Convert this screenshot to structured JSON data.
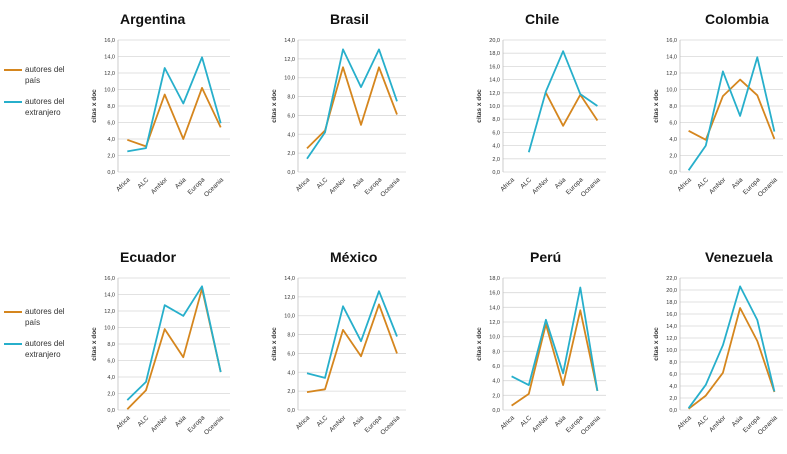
{
  "legend": [
    {
      "label": "autores del país",
      "color": "#D5861E"
    },
    {
      "label": "autores del extranjero",
      "color": "#27AFCB"
    }
  ],
  "chart_data": [
    {
      "type": "line",
      "title": "Argentina",
      "ylabel": "citas x doc",
      "categories": [
        "Africa",
        "ALC",
        "AmNor",
        "Asia",
        "Europa",
        "Oceania"
      ],
      "yticks": [
        "0,0",
        "2,0",
        "4,0",
        "6,0",
        "8,0",
        "10,0",
        "12,0",
        "14,0",
        "16,0"
      ],
      "ylim": [
        0,
        16
      ],
      "series": [
        {
          "name": "autores del país",
          "color": "#D5861E",
          "values": [
            3.9,
            3.1,
            9.4,
            4.0,
            10.2,
            5.4
          ]
        },
        {
          "name": "autores del extranjero",
          "color": "#27AFCB",
          "values": [
            2.5,
            2.9,
            12.6,
            8.3,
            13.9,
            5.9
          ]
        }
      ]
    },
    {
      "type": "line",
      "title": "Brasil",
      "ylabel": "citas x doc",
      "categories": [
        "Africa",
        "ALC",
        "AmNor",
        "Asia",
        "Europa",
        "Oceania"
      ],
      "yticks": [
        "0,0",
        "2,0",
        "4,0",
        "6,0",
        "8,0",
        "10,0",
        "12,0",
        "14,0"
      ],
      "ylim": [
        0,
        14
      ],
      "series": [
        {
          "name": "autores del país",
          "color": "#D5861E",
          "values": [
            2.5,
            4.4,
            11.1,
            5.0,
            11.1,
            6.1
          ]
        },
        {
          "name": "autores del extranjero",
          "color": "#27AFCB",
          "values": [
            1.4,
            4.2,
            13.0,
            9.0,
            13.0,
            7.5
          ]
        }
      ]
    },
    {
      "type": "line",
      "title": "Chile",
      "ylabel": "citas x doc",
      "categories": [
        "Africa",
        "ALC",
        "AmNor",
        "Asia",
        "Europa",
        "Oceania"
      ],
      "yticks": [
        "0,0",
        "2,0",
        "4,0",
        "6,0",
        "8,0",
        "10,0",
        "12,0",
        "14,0",
        "16,0",
        "18,0",
        "20,0"
      ],
      "ylim": [
        0,
        20
      ],
      "series": [
        {
          "name": "autores del país",
          "color": "#D5861E",
          "values": [
            null,
            null,
            12.0,
            7.0,
            11.7,
            7.8
          ]
        },
        {
          "name": "autores del extranjero",
          "color": "#27AFCB",
          "values": [
            null,
            3.0,
            12.2,
            18.3,
            11.8,
            10.0
          ]
        }
      ]
    },
    {
      "type": "line",
      "title": "Colombia",
      "ylabel": "citas x doc",
      "categories": [
        "Africa",
        "ALC",
        "AmNor",
        "Asia",
        "Europa",
        "Oceania"
      ],
      "yticks": [
        "0,0",
        "2,0",
        "4,0",
        "6,0",
        "8,0",
        "10,0",
        "12,0",
        "14,0",
        "16,0"
      ],
      "ylim": [
        0,
        16
      ],
      "series": [
        {
          "name": "autores del país",
          "color": "#D5861E",
          "values": [
            5.0,
            3.9,
            9.2,
            11.2,
            9.3,
            4.0
          ]
        },
        {
          "name": "autores del extranjero",
          "color": "#27AFCB",
          "values": [
            0.2,
            3.2,
            12.2,
            6.8,
            13.9,
            4.9
          ]
        }
      ]
    },
    {
      "type": "line",
      "title": "Ecuador",
      "ylabel": "citas x doc",
      "categories": [
        "Africa",
        "ALC",
        "AmNor",
        "Asia",
        "Europa",
        "Oceania"
      ],
      "yticks": [
        "0,0",
        "2,0",
        "4,0",
        "6,0",
        "8,0",
        "10,0",
        "12,0",
        "14,0",
        "16,0"
      ],
      "ylim": [
        0,
        16
      ],
      "series": [
        {
          "name": "autores del país",
          "color": "#D5861E",
          "values": [
            0.1,
            2.4,
            9.8,
            6.4,
            14.7,
            4.6
          ]
        },
        {
          "name": "autores del extranjero",
          "color": "#27AFCB",
          "values": [
            1.2,
            3.4,
            12.7,
            11.4,
            15.0,
            4.6
          ]
        }
      ]
    },
    {
      "type": "line",
      "title": "México",
      "ylabel": "citas x doc",
      "categories": [
        "Africa",
        "ALC",
        "AmNor",
        "Asia",
        "Europa",
        "Oceania"
      ],
      "yticks": [
        "0,0",
        "2,0",
        "4,0",
        "6,0",
        "8,0",
        "10,0",
        "12,0",
        "14,0"
      ],
      "ylim": [
        0,
        14
      ],
      "series": [
        {
          "name": "autores del país",
          "color": "#D5861E",
          "values": [
            1.9,
            2.2,
            8.5,
            5.7,
            11.2,
            6.0
          ]
        },
        {
          "name": "autores del extranjero",
          "color": "#27AFCB",
          "values": [
            3.9,
            3.4,
            11.0,
            7.3,
            12.6,
            7.8
          ]
        }
      ]
    },
    {
      "type": "line",
      "title": "Perú",
      "ylabel": "citas x doc",
      "categories": [
        "Africa",
        "ALC",
        "AmNor",
        "Asia",
        "Europa",
        "Oceania"
      ],
      "yticks": [
        "0,0",
        "2,0",
        "4,0",
        "6,0",
        "8,0",
        "10,0",
        "12,0",
        "14,0",
        "16,0",
        "18,0"
      ],
      "ylim": [
        0,
        18
      ],
      "series": [
        {
          "name": "autores del país",
          "color": "#D5861E",
          "values": [
            0.6,
            2.2,
            11.7,
            3.4,
            13.6,
            2.6
          ]
        },
        {
          "name": "autores del extranjero",
          "color": "#27AFCB",
          "values": [
            4.6,
            3.4,
            12.3,
            5.0,
            16.7,
            2.6
          ]
        }
      ]
    },
    {
      "type": "line",
      "title": "Venezuela",
      "ylabel": "citas x doc",
      "categories": [
        "Africa",
        "ALC",
        "AmNor",
        "Asia",
        "Europa",
        "Oceania"
      ],
      "yticks": [
        "0,0",
        "2,0",
        "4,0",
        "6,0",
        "8,0",
        "10,0",
        "12,0",
        "14,0",
        "16,0",
        "18,0",
        "20,0",
        "22,0"
      ],
      "ylim": [
        0,
        22
      ],
      "series": [
        {
          "name": "autores del país",
          "color": "#D5861E",
          "values": [
            0.2,
            2.4,
            6.2,
            17.0,
            11.5,
            3.0
          ]
        },
        {
          "name": "autores del extranjero",
          "color": "#27AFCB",
          "values": [
            0.3,
            4.2,
            10.8,
            20.6,
            15.0,
            3.1
          ]
        }
      ]
    }
  ]
}
